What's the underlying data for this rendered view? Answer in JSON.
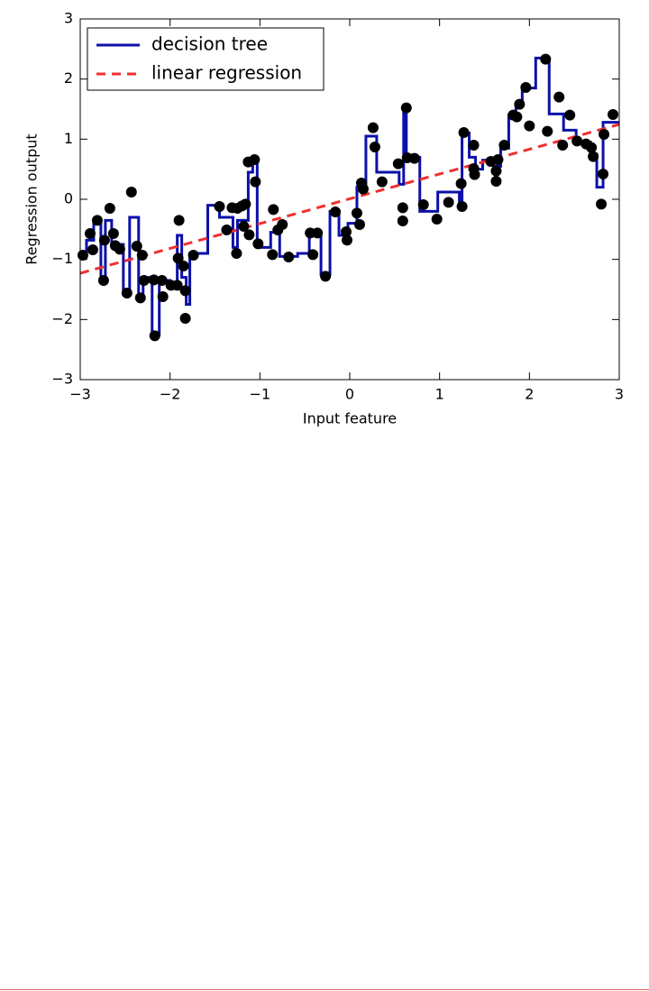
{
  "chart_data": {
    "type": "line",
    "xlabel": "Input feature",
    "ylabel": "Regression output",
    "xlim": [
      -3,
      3
    ],
    "ylim": [
      -3,
      3
    ],
    "xticks": [
      {
        "value": -3,
        "label": "−3"
      },
      {
        "value": -2,
        "label": "−2"
      },
      {
        "value": -1,
        "label": "−1"
      },
      0,
      1,
      2,
      3
    ],
    "yticks": [
      {
        "value": -3,
        "label": "−3"
      },
      {
        "value": -2,
        "label": "−2"
      },
      {
        "value": -1,
        "label": "−1"
      },
      0,
      1,
      2,
      3
    ],
    "legend": "upper left",
    "series": [
      {
        "name": "decision tree",
        "color": "#0c10a8",
        "style": "solid",
        "x": [
          -3,
          -2.93,
          -2.93,
          -2.85,
          -2.85,
          -2.77,
          -2.77,
          -2.72,
          -2.72,
          -2.65,
          -2.65,
          -2.52,
          -2.52,
          -2.45,
          -2.45,
          -2.35,
          -2.35,
          -2.3,
          -2.3,
          -2.2,
          -2.2,
          -2.12,
          -2.12,
          -2.0,
          -2.0,
          -1.92,
          -1.92,
          -1.87,
          -1.87,
          -1.82,
          -1.82,
          -1.78,
          -1.78,
          -1.58,
          -1.58,
          -1.45,
          -1.45,
          -1.3,
          -1.3,
          -1.25,
          -1.25,
          -1.13,
          -1.13,
          -1.08,
          -1.08,
          -1.03,
          -1.03,
          -0.88,
          -0.88,
          -0.78,
          -0.78,
          -0.58,
          -0.58,
          -0.45,
          -0.45,
          -0.32,
          -0.32,
          -0.22,
          -0.22,
          -0.12,
          -0.12,
          -0.02,
          -0.02,
          0.08,
          0.08,
          0.18,
          0.18,
          0.3,
          0.3,
          0.55,
          0.55,
          0.6,
          0.6,
          0.63,
          0.63,
          0.78,
          0.78,
          0.98,
          0.98,
          1.22,
          1.22,
          1.25,
          1.25,
          1.33,
          1.33,
          1.4,
          1.4,
          1.48,
          1.48,
          1.6,
          1.6,
          1.68,
          1.68,
          1.77,
          1.77,
          1.85,
          1.85,
          1.92,
          1.92,
          2.07,
          2.07,
          2.22,
          2.22,
          2.38,
          2.38,
          2.52,
          2.52,
          2.68,
          2.68,
          2.75,
          2.75,
          2.82,
          2.82,
          3
        ],
        "values": [
          -0.9,
          -0.9,
          -0.68,
          -0.68,
          -0.35,
          -0.35,
          -1.35,
          -1.35,
          -0.35,
          -0.35,
          -0.75,
          -0.75,
          -1.5,
          -1.5,
          -0.3,
          -0.3,
          -1.6,
          -1.6,
          -1.3,
          -1.3,
          -2.25,
          -2.25,
          -1.35,
          -1.35,
          -1.4,
          -1.4,
          -0.6,
          -0.6,
          -1.3,
          -1.3,
          -1.75,
          -1.75,
          -0.9,
          -0.9,
          -0.1,
          -0.1,
          -0.3,
          -0.3,
          -0.8,
          -0.8,
          -0.35,
          -0.35,
          0.45,
          0.45,
          0.65,
          0.65,
          -0.8,
          -0.8,
          -0.55,
          -0.55,
          -0.95,
          -0.95,
          -0.9,
          -0.9,
          -0.55,
          -0.55,
          -1.25,
          -1.25,
          -0.2,
          -0.2,
          -0.6,
          -0.6,
          -0.4,
          -0.4,
          0.2,
          0.2,
          1.05,
          1.05,
          0.45,
          0.45,
          0.25,
          0.25,
          1.5,
          1.5,
          0.7,
          0.7,
          -0.2,
          -0.2,
          0.12,
          0.12,
          -0.1,
          -0.1,
          1.1,
          1.1,
          0.7,
          0.7,
          0.5,
          0.5,
          0.65,
          0.65,
          0.55,
          0.55,
          0.85,
          0.85,
          1.4,
          1.4,
          1.55,
          1.55,
          1.85,
          1.85,
          2.35,
          2.35,
          1.42,
          1.42,
          1.15,
          1.15,
          0.95,
          0.95,
          0.75,
          0.75,
          0.2,
          0.2,
          1.28,
          1.28
        ]
      },
      {
        "name": "linear regression",
        "color": "#f03030",
        "style": "dashed",
        "x": [
          -3,
          3
        ],
        "values": [
          -1.23,
          1.245
        ]
      }
    ],
    "points": {
      "color": "#000000",
      "x": [
        -2.97,
        -2.89,
        -2.86,
        -2.81,
        -2.74,
        -2.73,
        -2.67,
        -2.63,
        -2.61,
        -2.56,
        -2.48,
        -2.43,
        -2.37,
        -2.33,
        -2.31,
        -2.29,
        -2.17,
        -2.18,
        -2.09,
        -2.08,
        -1.99,
        -1.92,
        -1.91,
        -1.9,
        -1.85,
        -1.83,
        -1.83,
        -1.74,
        -1.45,
        -1.37,
        -1.31,
        -1.26,
        -1.25,
        -1.2,
        -1.18,
        -1.16,
        -1.13,
        -1.12,
        -1.06,
        -1.05,
        -1.02,
        -0.86,
        -0.85,
        -0.8,
        -0.75,
        -0.68,
        -0.44,
        -0.41,
        -0.36,
        -0.27,
        -0.16,
        -0.04,
        -0.03,
        0.08,
        0.11,
        0.13,
        0.15,
        0.26,
        0.28,
        0.36,
        0.54,
        0.59,
        0.59,
        0.63,
        0.64,
        0.72,
        0.82,
        0.97,
        1.1,
        1.24,
        1.25,
        1.27,
        1.38,
        1.38,
        1.39,
        1.57,
        1.63,
        1.63,
        1.65,
        1.72,
        1.82,
        1.86,
        1.89,
        1.96,
        2.0,
        2.18,
        2.2,
        2.33,
        2.37,
        2.45,
        2.53,
        2.63,
        2.69,
        2.71,
        2.8,
        2.83,
        2.82,
        2.93
      ],
      "y": [
        -0.93,
        -0.57,
        -0.84,
        -0.35,
        -1.35,
        -0.68,
        -0.15,
        -0.57,
        -0.77,
        -0.83,
        -1.56,
        0.12,
        -0.78,
        -1.64,
        -0.93,
        -1.35,
        -2.27,
        -1.34,
        -1.35,
        -1.62,
        -1.43,
        -1.43,
        -0.98,
        -0.35,
        -1.11,
        -1.52,
        -1.98,
        -0.93,
        -0.12,
        -0.51,
        -0.14,
        -0.9,
        -0.15,
        -0.11,
        -0.45,
        -0.08,
        0.62,
        -0.59,
        0.66,
        0.29,
        -0.74,
        -0.92,
        -0.17,
        -0.51,
        -0.42,
        -0.96,
        -0.56,
        -0.92,
        -0.56,
        -1.28,
        -0.21,
        -0.54,
        -0.68,
        -0.23,
        -0.42,
        0.27,
        0.17,
        1.19,
        0.87,
        0.29,
        0.59,
        -0.36,
        -0.14,
        1.52,
        0.69,
        0.68,
        -0.09,
        -0.33,
        -0.05,
        0.26,
        -0.12,
        1.11,
        0.9,
        0.51,
        0.41,
        0.63,
        0.47,
        0.3,
        0.66,
        0.9,
        1.4,
        1.37,
        1.58,
        1.86,
        1.22,
        2.33,
        1.13,
        1.7,
        0.9,
        1.4,
        0.97,
        0.92,
        0.86,
        0.71,
        -0.08,
        1.08,
        0.42,
        1.41
      ]
    }
  }
}
